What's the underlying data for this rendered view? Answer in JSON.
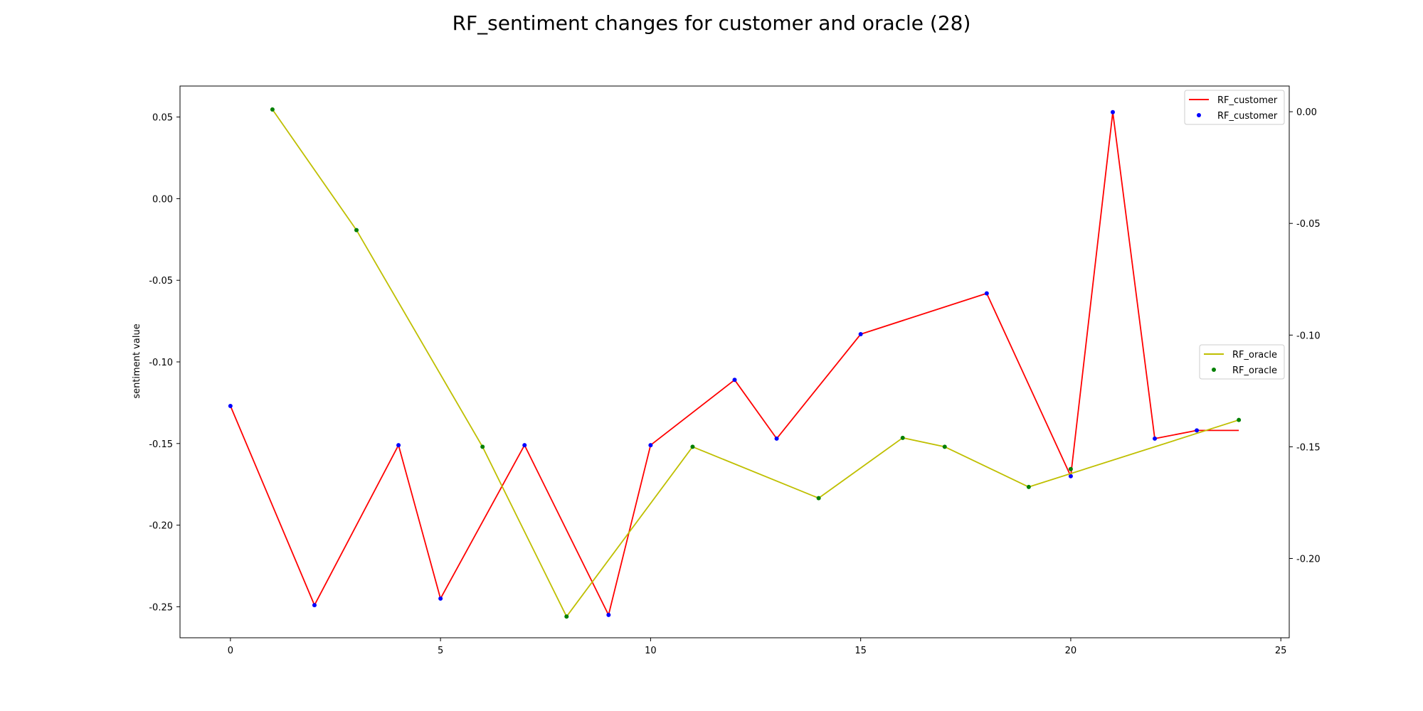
{
  "chart_data": {
    "type": "line",
    "title": "RF_sentiment changes for customer and oracle (28)",
    "xlabel": "",
    "ylabel": "sentiment value",
    "xlim": [
      -1.2,
      25.2
    ],
    "xticks": [
      0,
      5,
      10,
      15,
      20,
      25
    ],
    "left_axis": {
      "ylim": [
        -0.269,
        0.069
      ],
      "yticks": [
        0.05,
        0.0,
        -0.05,
        -0.1,
        -0.15,
        -0.2,
        -0.25
      ],
      "ytick_labels": [
        "0.05",
        "0.00",
        "-0.05",
        "-0.10",
        "-0.15",
        "-0.20",
        "-0.25"
      ]
    },
    "right_axis": {
      "ylim": [
        -0.2355,
        0.0115
      ],
      "yticks": [
        0.0,
        -0.05,
        -0.1,
        -0.15,
        -0.2
      ],
      "ytick_labels": [
        "0.00",
        "-0.05",
        "-0.10",
        "-0.15",
        "-0.20"
      ]
    },
    "grid": false,
    "series": [
      {
        "name": "RF_customer",
        "axis": "left",
        "line_color": "#ff0000",
        "marker_color": "#0000ff",
        "x": [
          0,
          2,
          4,
          5,
          7,
          9,
          10,
          12,
          13,
          15,
          18,
          20,
          21,
          22,
          23,
          24
        ],
        "y": [
          -0.127,
          -0.249,
          -0.151,
          -0.245,
          -0.151,
          -0.255,
          -0.151,
          -0.111,
          -0.147,
          -0.083,
          -0.058,
          -0.17,
          0.053,
          -0.147,
          -0.142,
          -0.142
        ],
        "marker_skip_last": true
      },
      {
        "name": "RF_oracle",
        "axis": "right",
        "line_color": "#bfbf00",
        "marker_color": "#008000",
        "x": [
          1,
          3,
          6,
          8,
          11,
          14,
          16,
          17,
          19,
          24
        ],
        "y": [
          0.001,
          -0.053,
          -0.15,
          -0.226,
          -0.15,
          -0.173,
          -0.146,
          -0.15,
          -0.168,
          -0.138
        ],
        "extra_markers": [
          {
            "x": 20,
            "y": -0.16
          }
        ]
      }
    ],
    "legends": [
      {
        "placement": "upper-right",
        "items": [
          {
            "label": "RF_customer",
            "kind": "line",
            "color": "#ff0000"
          },
          {
            "label": "RF_customer",
            "kind": "marker",
            "color": "#0000ff"
          }
        ]
      },
      {
        "placement": "center-right",
        "items": [
          {
            "label": "RF_oracle",
            "kind": "line",
            "color": "#bfbf00"
          },
          {
            "label": "RF_oracle",
            "kind": "marker",
            "color": "#008000"
          }
        ]
      }
    ]
  }
}
